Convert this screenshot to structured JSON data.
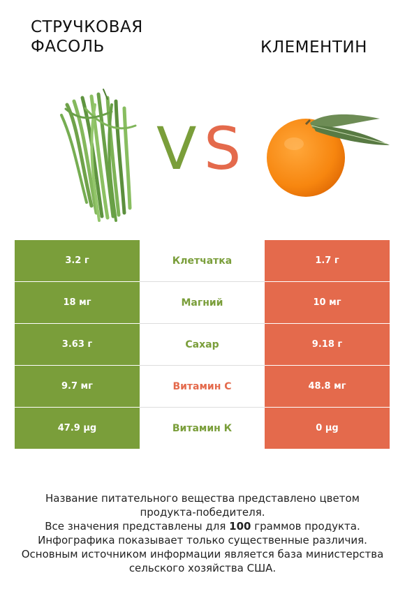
{
  "left": {
    "title_line1": "СТРУЧКОВАЯ",
    "title_line2": "ФАСОЛЬ",
    "color": "#7a9e3a",
    "image": "green-beans"
  },
  "right": {
    "title": "КЛЕМЕНТИН",
    "color": "#e46a4c",
    "image": "clementine"
  },
  "vs": {
    "v": "V",
    "s": "S",
    "v_color": "#7a9e3a",
    "s_color": "#e46a4c"
  },
  "rows": [
    {
      "left": "3.2 г",
      "nutrient": "Клетчатка",
      "right": "1.7 г",
      "winner": "left"
    },
    {
      "left": "18 мг",
      "nutrient": "Магний",
      "right": "10 мг",
      "winner": "left"
    },
    {
      "left": "3.63 г",
      "nutrient": "Сахар",
      "right": "9.18 г",
      "winner": "left"
    },
    {
      "left": "9.7 мг",
      "nutrient": "Витамин C",
      "right": "48.8 мг",
      "winner": "right"
    },
    {
      "left": "47.9 µg",
      "nutrient": "Витамин К",
      "right": "0 µg",
      "winner": "left"
    }
  ],
  "footer": {
    "line1": "Название питательного вещества представлено цветом",
    "line2": "продукта-победителя.",
    "line3_before": "Все значения представлены для ",
    "line3_bold": "100",
    "line3_after": " граммов продукта.",
    "line4": "Инфографика показывает только существенные различия.",
    "line5": "Основным источником информации является база министерства",
    "line6": "сельского хозяйства США."
  }
}
